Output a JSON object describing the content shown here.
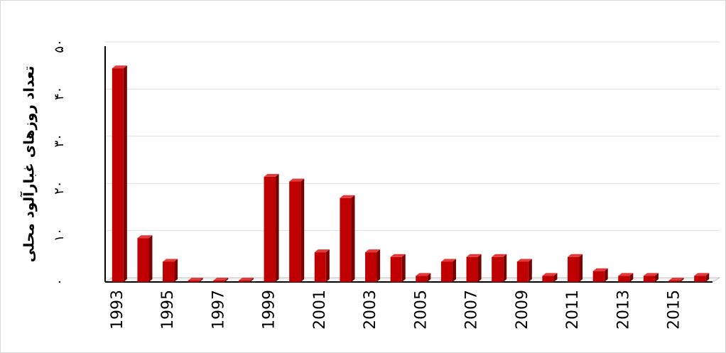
{
  "chart_data": {
    "type": "bar",
    "y_label": "تعداد روزهای غبارآلود محلی",
    "categories": [
      "1993",
      null,
      "1995",
      null,
      "1997",
      null,
      "1999",
      null,
      "2001",
      null,
      "2003",
      null,
      "2005",
      null,
      "2007",
      null,
      "2009",
      null,
      "2011",
      null,
      "2013",
      null,
      "2015",
      null
    ],
    "values": [
      45,
      9,
      4,
      0,
      0,
      0,
      22,
      21,
      6,
      17.5,
      6,
      5,
      1,
      4,
      5,
      5,
      4,
      1,
      5,
      2,
      1,
      1,
      0,
      1
    ],
    "color": "#c00000",
    "ylim": [
      0,
      50
    ],
    "yticks": [
      {
        "value": 0,
        "label": "۰"
      },
      {
        "value": 10,
        "label": "۱۰"
      },
      {
        "value": 20,
        "label": "۲۰"
      },
      {
        "value": 30,
        "label": "۳۰"
      },
      {
        "value": 40,
        "label": "۴۰"
      },
      {
        "value": 50,
        "label": "۵۰"
      }
    ],
    "grid": true
  }
}
